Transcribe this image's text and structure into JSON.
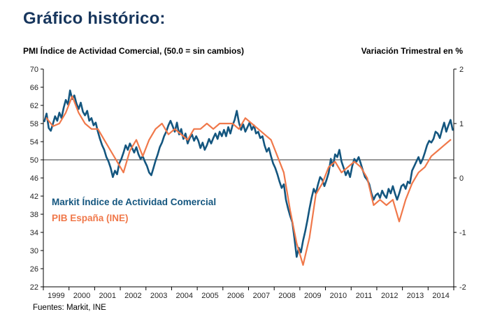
{
  "header": {
    "title": "Gráfico histórico:"
  },
  "axis_titles": {
    "left": "PMI Índice de Actividad Comercial,  (50.0 = sin cambios)",
    "right": "Variación Trimestral en %"
  },
  "legend": {
    "pmi": "Markit Índice de Actividad Comercial",
    "gdp": "PIB España (INE)"
  },
  "footer": {
    "source": "Fuentes: Markit, INE"
  },
  "colors": {
    "title": "#17365D",
    "pmi_line": "#14567F",
    "gdp_line": "#F0784A",
    "axis": "#000000",
    "tick_text": "#262626"
  },
  "chart_data": {
    "type": "line",
    "title": "Gráfico histórico",
    "left_axis": {
      "label": "PMI Índice de Actividad Comercial (50.0 = sin cambios)",
      "min": 22,
      "max": 70,
      "ticks": [
        70,
        66,
        62,
        58,
        54,
        50,
        46,
        42,
        38,
        34,
        30,
        26,
        22
      ]
    },
    "right_axis": {
      "label": "Variación Trimestral en %",
      "min": -2,
      "max": 2,
      "ticks": [
        2,
        1,
        0,
        -1,
        -2
      ]
    },
    "x_axis": {
      "min": 1999,
      "max": 2015,
      "year_labels": [
        "1999",
        "2000",
        "2001",
        "2002",
        "2003",
        "2004",
        "2005",
        "2006",
        "2007",
        "2008",
        "2009",
        "2010",
        "2011",
        "2012",
        "2013",
        "2014"
      ]
    },
    "reference_line_left_value": 50,
    "legend_position": "inside-left",
    "grid": false,
    "series": [
      {
        "key": "pmi",
        "name": "Markit Índice de Actividad Comercial",
        "axis": "left",
        "start": 1999.042,
        "step": 0.0833333,
        "values": [
          58.5,
          60.2,
          57.0,
          56.4,
          58.0,
          59.6,
          58.6,
          60.4,
          59.2,
          61.5,
          63.2,
          62.2,
          65.3,
          63.4,
          64.2,
          62.4,
          61.2,
          62.6,
          60.6,
          59.8,
          60.8,
          58.6,
          59.2,
          57.6,
          58.2,
          56.2,
          54.6,
          53.2,
          52.2,
          50.6,
          49.6,
          48.2,
          46.2,
          47.6,
          46.8,
          49.2,
          50.2,
          51.6,
          53.2,
          52.2,
          53.6,
          52.6,
          51.6,
          52.8,
          51.2,
          50.2,
          50.8,
          49.6,
          48.6,
          47.2,
          46.6,
          48.2,
          49.8,
          51.2,
          52.8,
          53.8,
          55.2,
          56.2,
          57.6,
          58.6,
          57.4,
          56.2,
          58.2,
          55.6,
          56.8,
          54.6,
          55.8,
          53.6,
          54.8,
          55.6,
          54.2,
          55.2,
          54.2,
          52.6,
          53.8,
          52.2,
          53.2,
          54.6,
          53.6,
          54.8,
          55.8,
          54.6,
          56.2,
          55.2,
          56.6,
          55.2,
          57.2,
          55.8,
          57.6,
          58.8,
          60.8,
          58.2,
          56.6,
          57.8,
          56.2,
          57.2,
          58.2,
          56.6,
          57.6,
          55.8,
          56.2,
          54.8,
          55.2,
          53.2,
          51.8,
          52.6,
          50.8,
          49.2,
          48.2,
          46.8,
          45.2,
          43.8,
          44.6,
          41.2,
          39.2,
          37.6,
          36.2,
          32.6,
          28.6,
          30.6,
          29.6,
          32.2,
          34.2,
          36.6,
          39.2,
          41.6,
          43.6,
          42.6,
          44.6,
          46.2,
          45.6,
          44.2,
          45.6,
          47.2,
          50.2,
          48.6,
          51.2,
          50.6,
          52.2,
          49.6,
          48.2,
          46.6,
          47.6,
          46.2,
          48.6,
          50.2,
          49.6,
          50.6,
          49.2,
          47.6,
          46.2,
          45.6,
          44.6,
          42.6,
          41.2,
          42.2,
          42.6,
          41.6,
          43.2,
          42.2,
          41.6,
          43.6,
          42.6,
          44.2,
          42.6,
          41.2,
          42.6,
          44.2,
          44.6,
          43.6,
          45.2,
          44.8,
          47.6,
          48.6,
          49.6,
          50.6,
          49.2,
          50.2,
          51.6,
          53.2,
          54.2,
          53.8,
          54.6,
          56.2,
          55.8,
          54.8,
          56.6,
          58.2,
          56.2,
          57.6,
          58.8,
          56.6
        ]
      },
      {
        "key": "gdp",
        "name": "PIB España (INE)",
        "axis": "right",
        "start": 1999.125,
        "step": 0.25,
        "values": [
          1.1,
          0.95,
          1.0,
          1.2,
          1.5,
          1.2,
          1.0,
          0.9,
          0.9,
          0.7,
          0.5,
          0.3,
          0.1,
          0.5,
          0.7,
          0.4,
          0.7,
          0.9,
          1.0,
          0.8,
          0.9,
          0.8,
          0.7,
          0.9,
          0.9,
          1.0,
          0.9,
          1.0,
          1.0,
          1.0,
          0.9,
          1.1,
          1.0,
          0.9,
          0.8,
          0.7,
          0.4,
          0.1,
          -0.6,
          -1.2,
          -1.6,
          -1.1,
          -0.3,
          -0.1,
          0.2,
          0.3,
          0.1,
          0.2,
          0.3,
          0.2,
          0.0,
          -0.5,
          -0.4,
          -0.5,
          -0.4,
          -0.8,
          -0.4,
          -0.1,
          0.1,
          0.2,
          0.4,
          0.5,
          0.6,
          0.7
        ]
      }
    ]
  }
}
